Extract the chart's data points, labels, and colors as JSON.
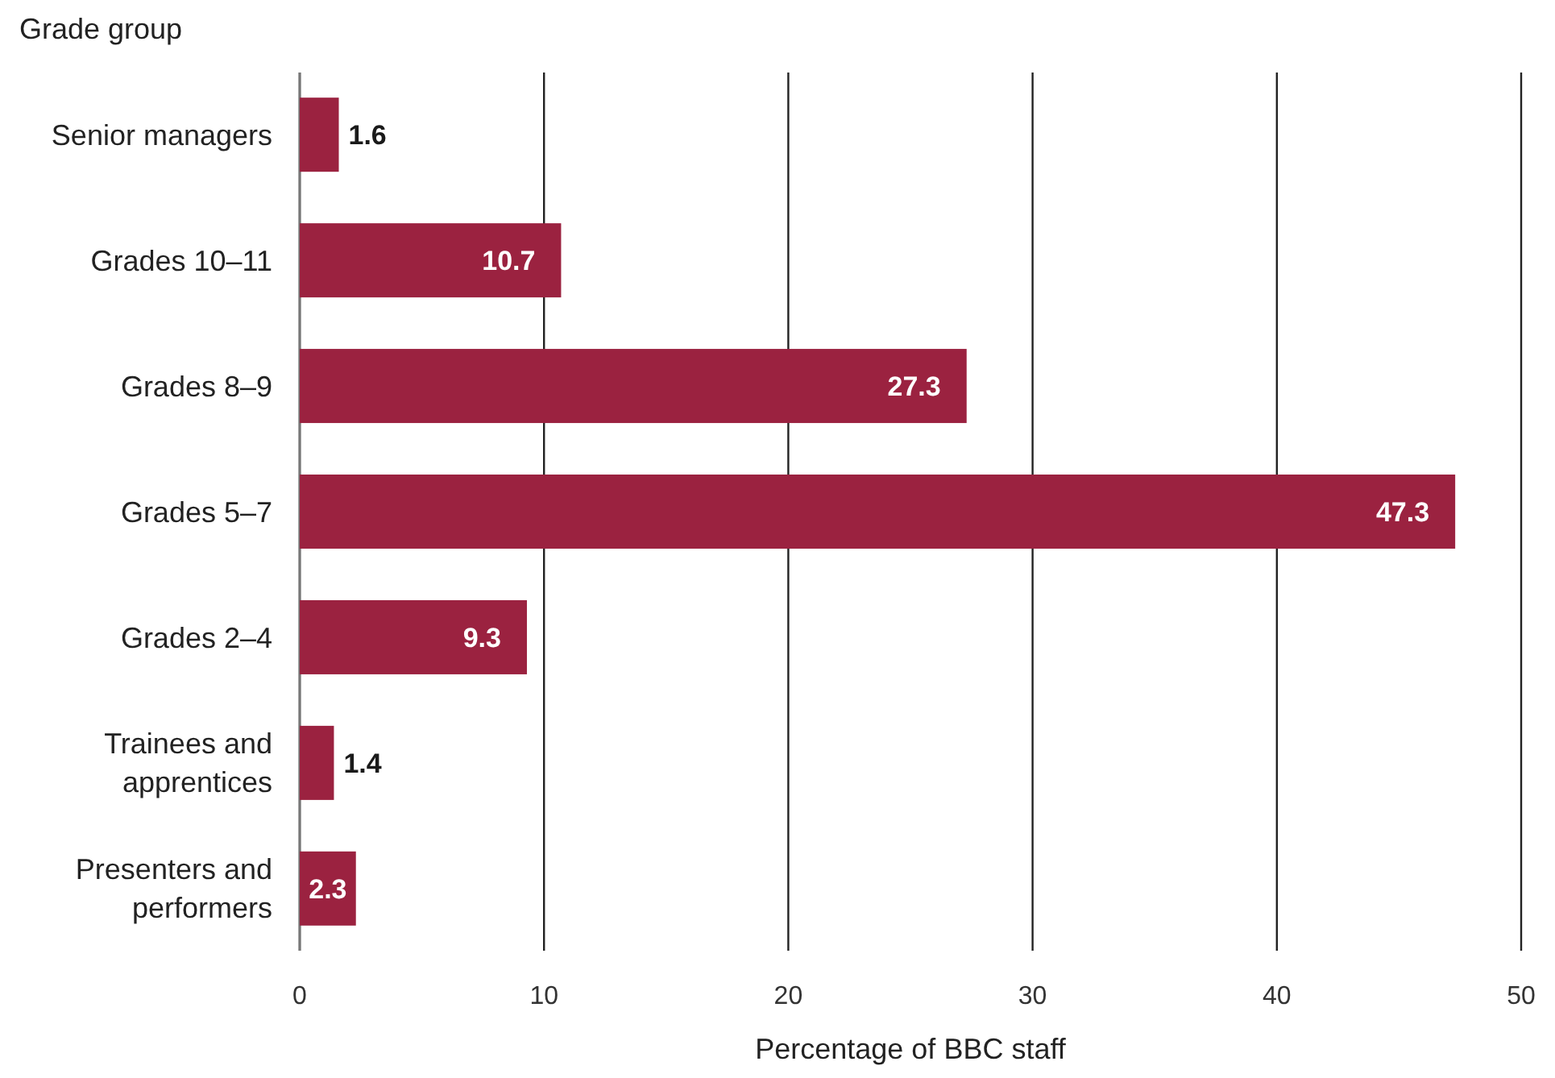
{
  "chart_data": {
    "type": "bar",
    "orientation": "horizontal",
    "ylabel": "Grade group",
    "xlabel": "Percentage of BBC staff",
    "categories": [
      "Senior managers",
      "Grades 10–11",
      "Grades 8–9",
      "Grades 5–7",
      "Grades 2–4",
      "Trainees and apprentices",
      "Presenters and performers"
    ],
    "values": [
      1.6,
      10.7,
      27.3,
      47.3,
      9.3,
      1.4,
      2.3
    ],
    "color": "#9b2240",
    "xlim": [
      0,
      50
    ],
    "xticks": [
      0,
      10,
      20,
      30,
      40,
      50
    ],
    "grid": "x",
    "data_labels": true
  }
}
